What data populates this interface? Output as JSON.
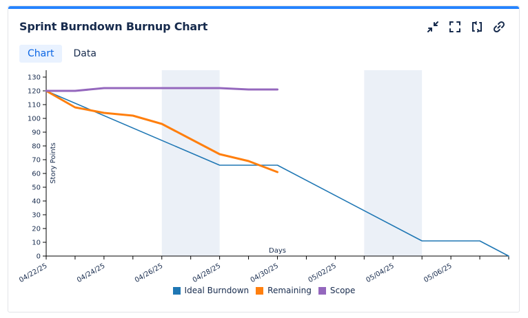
{
  "header": {
    "title": "Sprint Burndown Burnup Chart"
  },
  "toolbar": {
    "icons": [
      "collapse-icon",
      "fullscreen-icon",
      "refresh-icon",
      "link-icon"
    ]
  },
  "tabs": [
    {
      "label": "Chart",
      "active": true
    },
    {
      "label": "Data",
      "active": false
    }
  ],
  "chart_data": {
    "type": "line",
    "ylabel": "Story Points",
    "xlabel": "Days",
    "ylim": [
      0,
      135
    ],
    "yticks": [
      0,
      10,
      20,
      30,
      40,
      50,
      60,
      70,
      80,
      90,
      100,
      110,
      120,
      130
    ],
    "xlim": [
      "04/22/25",
      "05/08/25"
    ],
    "xtick_labels": [
      "04/22/25",
      "04/24/25",
      "04/26/25",
      "04/28/25",
      "04/30/25",
      "05/02/25",
      "05/04/25",
      "05/06/25"
    ],
    "weekends": [
      [
        "04/26/25",
        "04/28/25"
      ],
      [
        "05/03/25",
        "05/05/25"
      ]
    ],
    "series": [
      {
        "name": "Ideal Burndown",
        "color": "#1f77b4",
        "points": [
          [
            "04/22/25",
            120
          ],
          [
            "04/28/25",
            66
          ],
          [
            "04/30/25",
            66
          ],
          [
            "05/05/25",
            11
          ],
          [
            "05/07/25",
            11
          ],
          [
            "05/08/25",
            0
          ]
        ]
      },
      {
        "name": "Remaining",
        "color": "#ff7f0e",
        "points": [
          [
            "04/22/25",
            120
          ],
          [
            "04/23/25",
            108
          ],
          [
            "04/24/25",
            104
          ],
          [
            "04/25/25",
            102
          ],
          [
            "04/26/25",
            96
          ],
          [
            "04/27/25",
            85
          ],
          [
            "04/28/25",
            74
          ],
          [
            "04/29/25",
            69
          ],
          [
            "04/30/25",
            61
          ]
        ]
      },
      {
        "name": "Scope",
        "color": "#9467bd",
        "points": [
          [
            "04/22/25",
            120
          ],
          [
            "04/23/25",
            120
          ],
          [
            "04/24/25",
            122
          ],
          [
            "04/25/25",
            122
          ],
          [
            "04/26/25",
            122
          ],
          [
            "04/27/25",
            122
          ],
          [
            "04/28/25",
            122
          ],
          [
            "04/29/25",
            121
          ],
          [
            "04/30/25",
            121
          ]
        ]
      }
    ],
    "legend": "bottom-center",
    "grid": false
  }
}
